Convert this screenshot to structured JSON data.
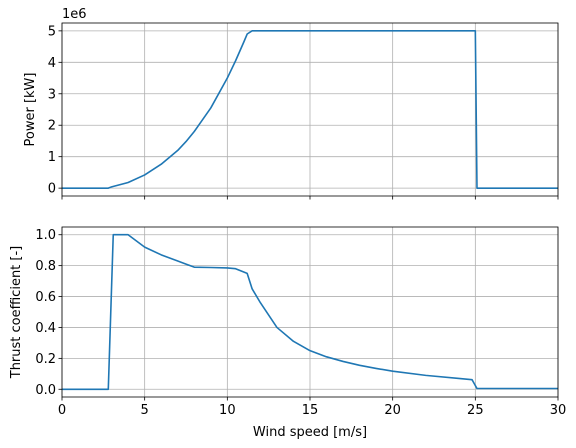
{
  "chart_data": [
    {
      "type": "line",
      "ylabel": "Power [kW]",
      "offset_text": "1e6",
      "xlim": [
        0,
        30
      ],
      "ylim": [
        -0.25,
        5.25
      ],
      "y_scale_note": "values in units of 1e6",
      "yticks": [
        0,
        1,
        2,
        3,
        4,
        5
      ],
      "ytick_labels": [
        "0",
        "1",
        "2",
        "3",
        "4",
        "5"
      ],
      "grid": true,
      "series": [
        {
          "color": "#1f77b4",
          "x": [
            0,
            2.8,
            3,
            4,
            5,
            6,
            7,
            7.5,
            8,
            9,
            10,
            10.5,
            11,
            11.2,
            11.5,
            12,
            15,
            20,
            24.8,
            25,
            25.1,
            30
          ],
          "y": [
            0,
            0,
            0.04,
            0.18,
            0.42,
            0.76,
            1.2,
            1.48,
            1.8,
            2.55,
            3.5,
            4.05,
            4.65,
            4.9,
            5.0,
            5.0,
            5.0,
            5.0,
            5.0,
            5.0,
            0,
            0
          ]
        }
      ]
    },
    {
      "type": "line",
      "xlabel": "Wind speed [m/s]",
      "ylabel": "Thrust coefficient [-]",
      "xlim": [
        0,
        30
      ],
      "ylim": [
        -0.05,
        1.05
      ],
      "xticks": [
        0,
        5,
        10,
        15,
        20,
        25,
        30
      ],
      "xtick_labels": [
        "0",
        "5",
        "10",
        "15",
        "20",
        "25",
        "30"
      ],
      "yticks": [
        0,
        0.2,
        0.4,
        0.6,
        0.8,
        1.0
      ],
      "ytick_labels": [
        "0.0",
        "0.2",
        "0.4",
        "0.6",
        "0.8",
        "1.0"
      ],
      "grid": true,
      "series": [
        {
          "color": "#1f77b4",
          "x": [
            0,
            2.8,
            3.1,
            4.0,
            5,
            6,
            7,
            7.5,
            8,
            9,
            10,
            10.5,
            11.2,
            11.5,
            12,
            13,
            14,
            15,
            16,
            17,
            18,
            19,
            20,
            22,
            24,
            24.8,
            25.1,
            30
          ],
          "y": [
            0,
            0,
            1.0,
            1.0,
            0.92,
            0.87,
            0.83,
            0.81,
            0.79,
            0.788,
            0.785,
            0.78,
            0.75,
            0.65,
            0.56,
            0.4,
            0.31,
            0.25,
            0.21,
            0.18,
            0.155,
            0.135,
            0.117,
            0.09,
            0.07,
            0.062,
            0.005,
            0.005
          ]
        }
      ]
    }
  ]
}
